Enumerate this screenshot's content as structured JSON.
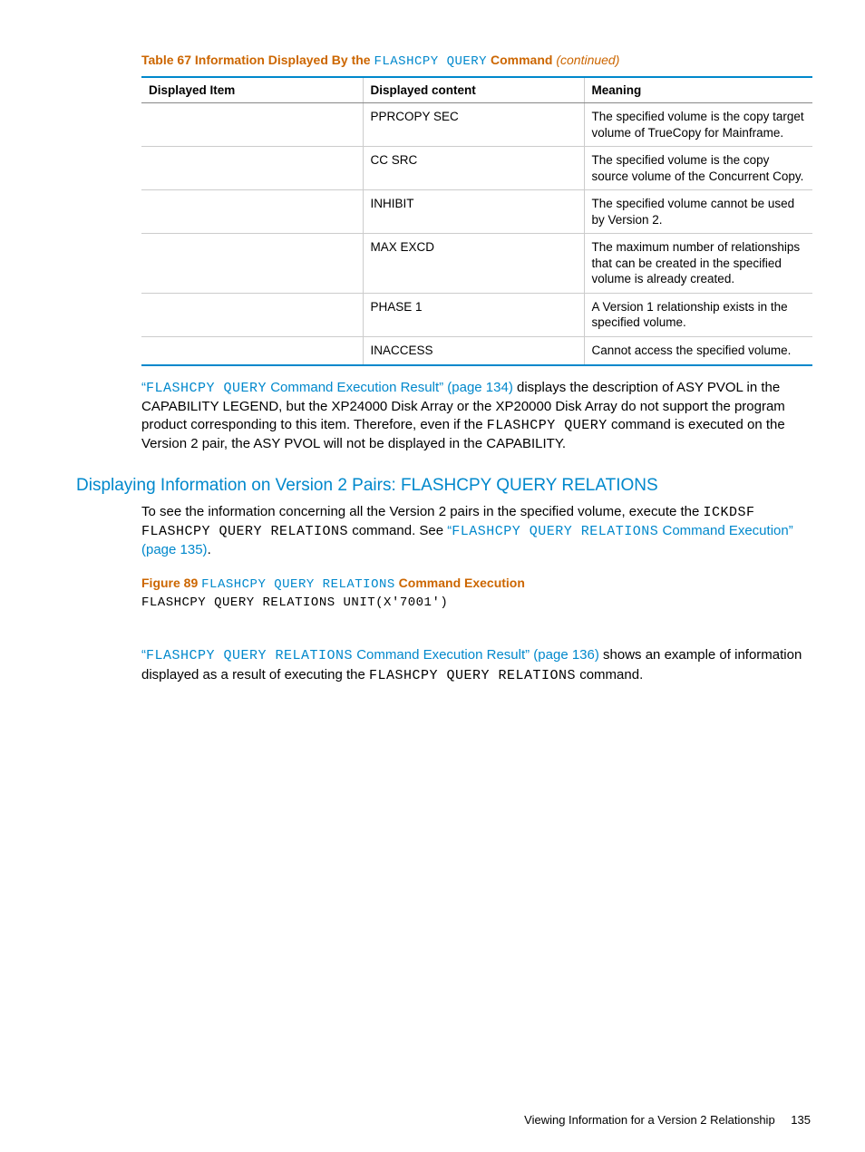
{
  "table": {
    "caption_prefix": "Table 67 Information Displayed By the",
    "caption_mono": "FLASHCPY QUERY",
    "caption_bold": "Command",
    "caption_cont": "(continued)",
    "columns": [
      "Displayed Item",
      "Displayed content",
      "Meaning"
    ],
    "rows": [
      {
        "item": "",
        "content": "PPRCOPY SEC",
        "meaning": "The specified volume is the copy target volume of TrueCopy for Mainframe."
      },
      {
        "item": "",
        "content": "CC SRC",
        "meaning": "The specified volume is the copy source volume of the Concurrent Copy."
      },
      {
        "item": "",
        "content": "INHIBIT",
        "meaning": "The specified volume cannot be used by Version 2."
      },
      {
        "item": "",
        "content": "MAX EXCD",
        "meaning": "The maximum number of relationships that can be created in the specified volume is already created."
      },
      {
        "item": "",
        "content": "PHASE 1",
        "meaning": "A Version 1 relationship exists in the specified volume."
      },
      {
        "item": "",
        "content": "INACCESS",
        "meaning": "Cannot access the specified volume."
      }
    ]
  },
  "para1": {
    "quote_open": "“",
    "link_mono": "FLASHCPY QUERY",
    "link_rest": " Command Execution Result” (page 134)",
    "post1": " displays the description of ASY PVOL in the CAPABILITY LEGEND, but the XP24000 Disk Array or the XP20000 Disk Array do not support the program product corresponding to this item. Therefore, even if the ",
    "mono_inline": "FLASHCPY QUERY",
    "post2": " command is executed on the Version 2 pair, the ASY PVOL will not be displayed in the CAPABILITY."
  },
  "section_heading": "Displaying Information on Version 2 Pairs: FLASHCPY QUERY RELATIONS",
  "para2": {
    "pre": "To see the information concerning all the Version 2 pairs in the specified volume, execute the ",
    "mono1": "ICKDSF FLASHCPY QUERY RELATIONS",
    "mid": " command. See ",
    "quote_open": "“",
    "link_mono": "FLASHCPY QUERY RELATIONS",
    "link_rest": " Command Execution” (page 135)",
    "end": "."
  },
  "figure": {
    "prefix": "Figure 89",
    "mono": "FLASHCPY QUERY RELATIONS",
    "bold": "Command Execution",
    "code": "FLASHCPY QUERY RELATIONS UNIT(X'7001')"
  },
  "para3": {
    "quote_open": "“",
    "link_mono": "FLASHCPY QUERY RELATIONS",
    "link_rest": " Command Execution Result” (page 136)",
    "post1": " shows an example of information displayed as a result of executing the ",
    "mono_inline": "FLASHCPY QUERY RELATIONS",
    "post2": " command."
  },
  "footer": {
    "text": "Viewing Information for a Version 2 Relationship",
    "page": "135"
  }
}
